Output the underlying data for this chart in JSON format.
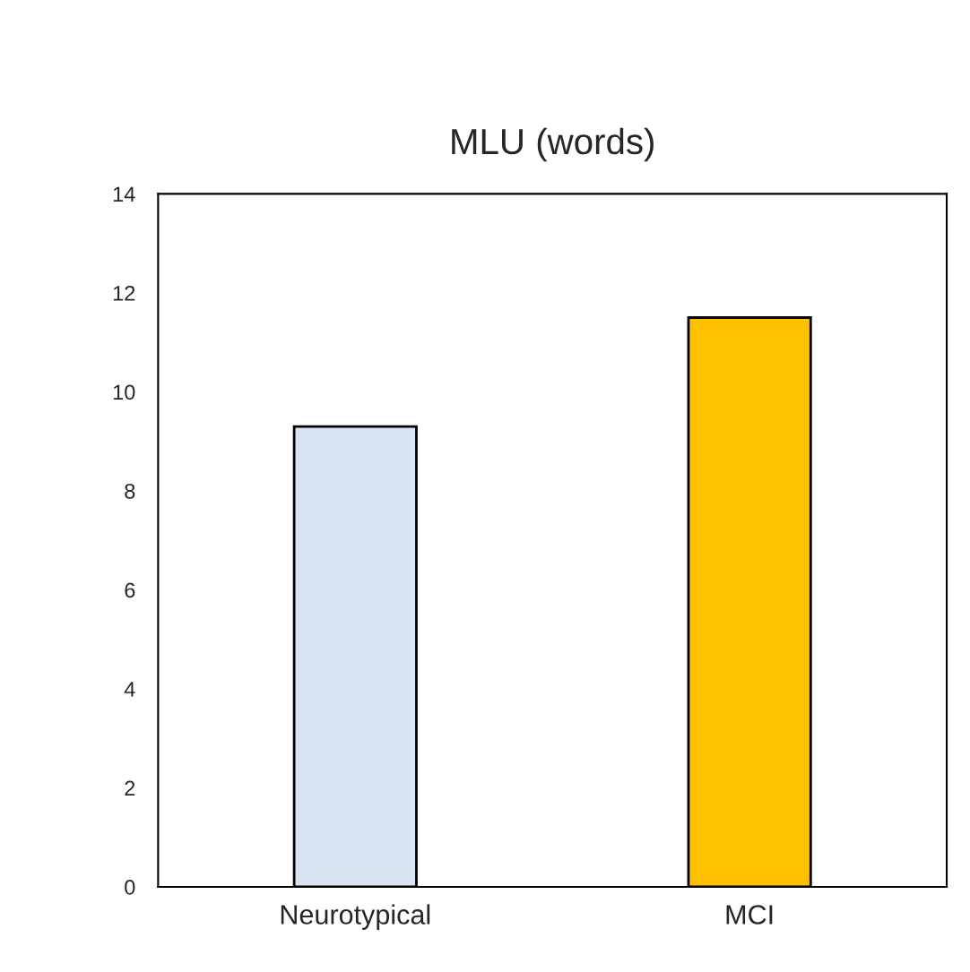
{
  "chart_data": {
    "type": "bar",
    "title": "MLU (words)",
    "categories": [
      "Neurotypical",
      "MCI"
    ],
    "values": [
      9.3,
      11.5
    ],
    "colors": [
      "#dae3f3",
      "#ffc000"
    ],
    "ylim": [
      0,
      14
    ],
    "yticks": [
      0,
      2,
      4,
      6,
      8,
      10,
      12,
      14
    ],
    "grid": false,
    "legend": false
  }
}
